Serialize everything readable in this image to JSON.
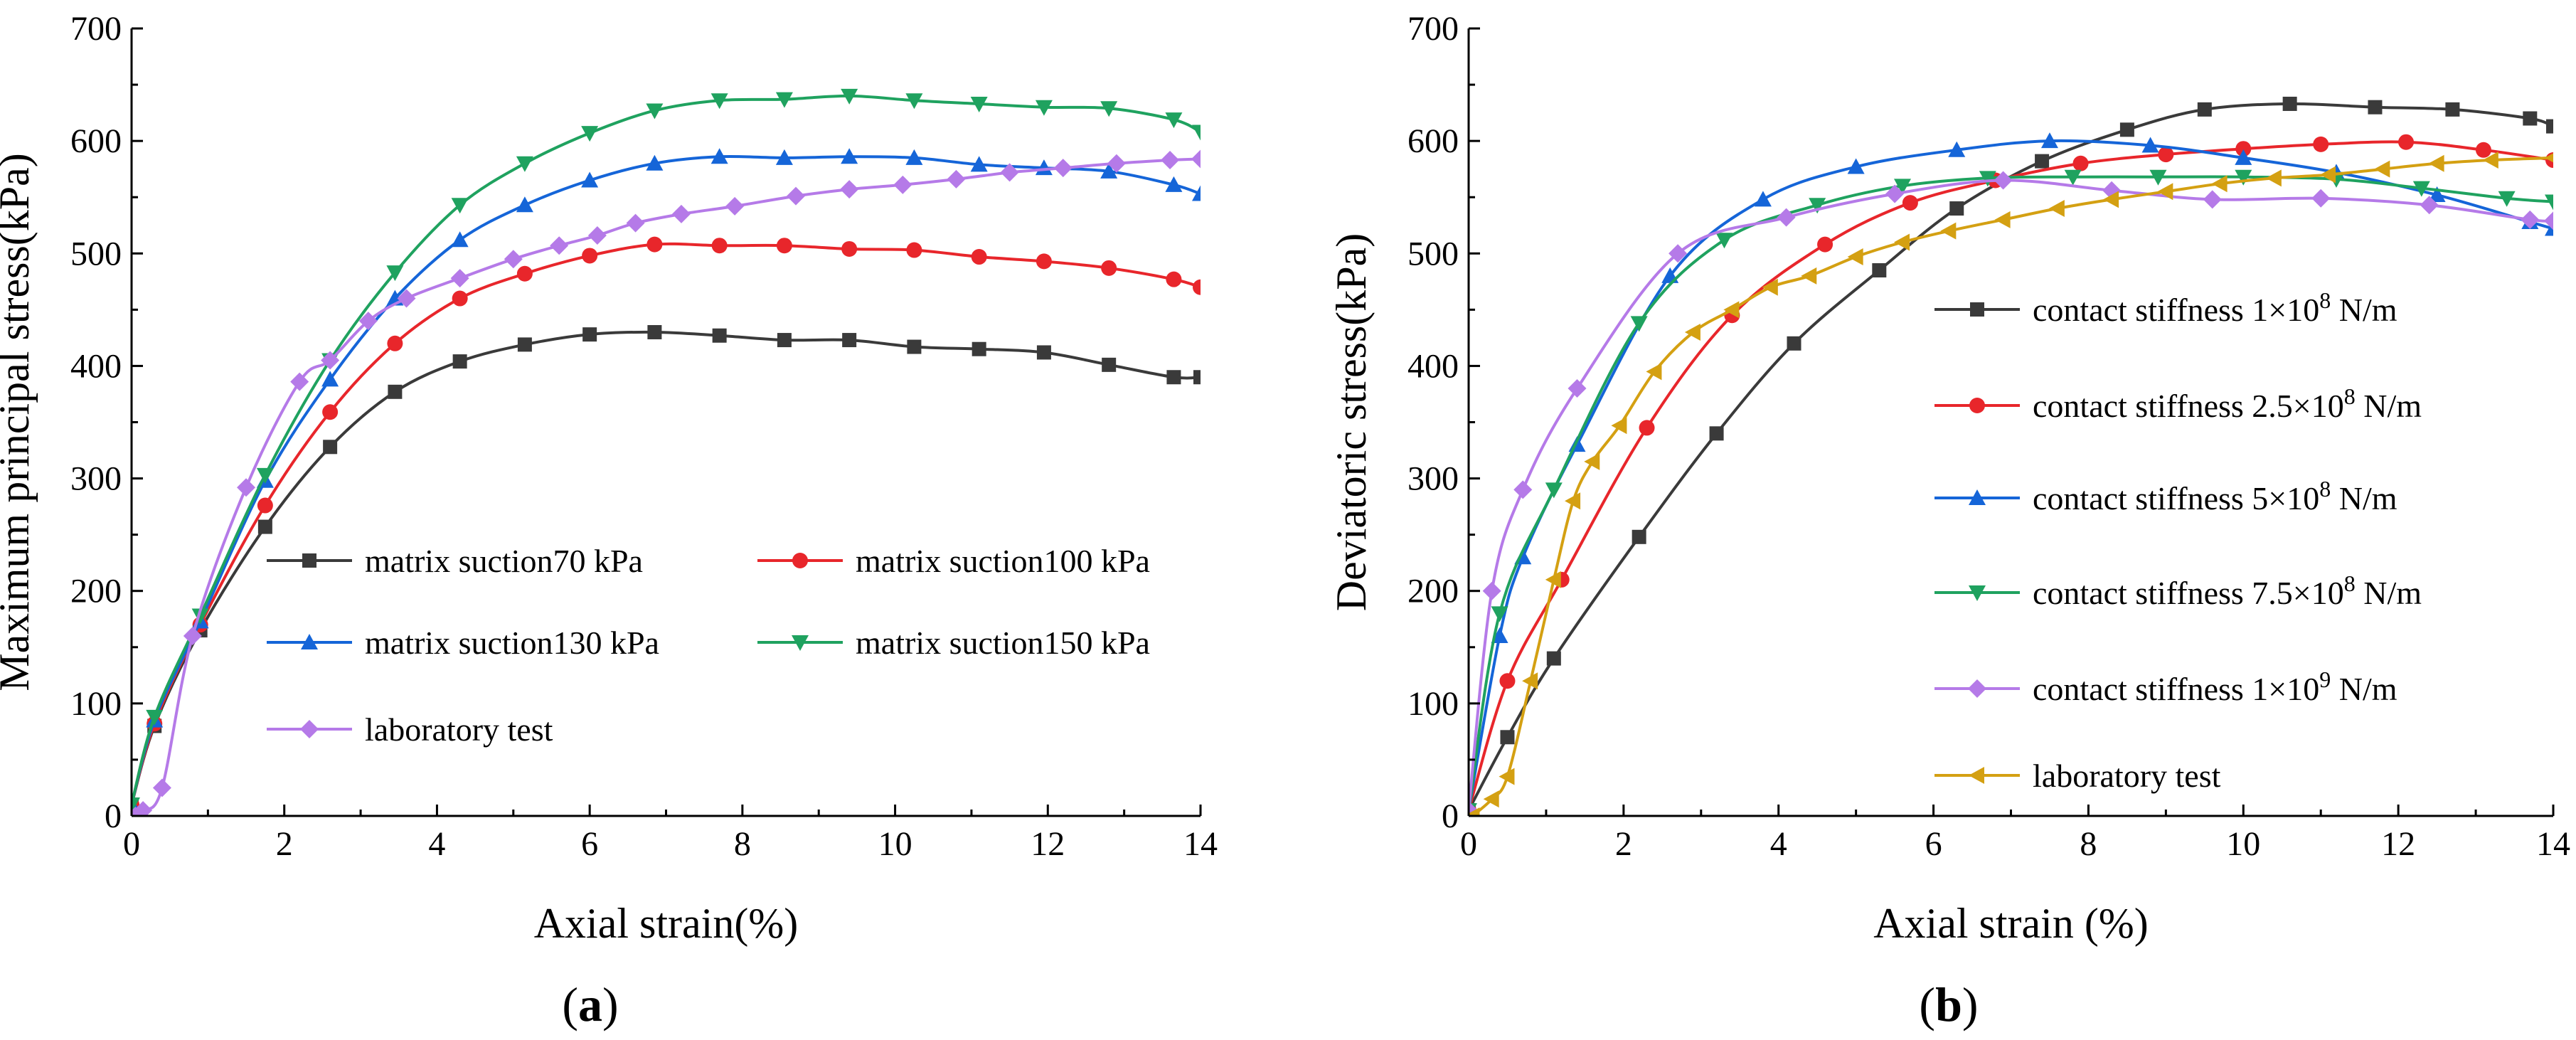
{
  "figure_labels": [
    {
      "open": "(",
      "letter": "a",
      "close": ")"
    },
    {
      "open": "(",
      "letter": "b",
      "close": ")"
    }
  ],
  "chart_data": [
    {
      "type": "line",
      "panel": "a",
      "title": "",
      "xlabel": "Axial strain(%)",
      "ylabel": "Maximum principal stress(kPa)",
      "xlim": [
        0,
        14
      ],
      "ylim": [
        0,
        700
      ],
      "xticks": [
        "0",
        "2",
        "4",
        "6",
        "8",
        "10",
        "12",
        "14"
      ],
      "yticks": [
        "0",
        "100",
        "200",
        "300",
        "400",
        "500",
        "600",
        "700"
      ],
      "legend_position": "center",
      "series": [
        {
          "name": "matrix suction70 kPa",
          "color": "#3a3a3a",
          "marker": "square",
          "x": [
            0,
            0.3,
            0.9,
            1.75,
            2.6,
            3.45,
            4.3,
            5.15,
            6.0,
            6.85,
            7.7,
            8.55,
            9.4,
            10.25,
            11.1,
            11.95,
            12.8,
            13.65,
            14.0
          ],
          "y": [
            10,
            80,
            165,
            257,
            328,
            377,
            404,
            419,
            428,
            430,
            427,
            423,
            423,
            417,
            415,
            412,
            401,
            390,
            390
          ]
        },
        {
          "name": "matrix suction100 kPa",
          "color": "#e8262b",
          "marker": "circle",
          "x": [
            0,
            0.3,
            0.9,
            1.75,
            2.6,
            3.45,
            4.3,
            5.15,
            6.0,
            6.85,
            7.7,
            8.55,
            9.4,
            10.25,
            11.1,
            11.95,
            12.8,
            13.65,
            14.0
          ],
          "y": [
            10,
            82,
            170,
            276,
            359,
            420,
            460,
            482,
            498,
            508,
            507,
            507,
            504,
            503,
            497,
            493,
            487,
            477,
            470
          ]
        },
        {
          "name": "matrix suction130 kPa",
          "color": "#1565d8",
          "marker": "triangle-up",
          "x": [
            0,
            0.3,
            0.9,
            1.75,
            2.6,
            3.45,
            4.3,
            5.15,
            6.0,
            6.85,
            7.7,
            8.55,
            9.4,
            10.25,
            11.1,
            11.95,
            12.8,
            13.65,
            14.0
          ],
          "y": [
            10,
            85,
            173,
            298,
            388,
            460,
            512,
            543,
            565,
            580,
            586,
            585,
            586,
            585,
            579,
            576,
            573,
            561,
            553
          ]
        },
        {
          "name": "matrix suction150 kPa",
          "color": "#1fa25f",
          "marker": "triangle-down",
          "x": [
            0,
            0.3,
            0.9,
            1.75,
            2.6,
            3.45,
            4.3,
            5.15,
            6.0,
            6.85,
            7.7,
            8.55,
            9.4,
            10.25,
            11.1,
            11.95,
            12.8,
            13.65,
            14.0
          ],
          "y": [
            10,
            88,
            178,
            303,
            405,
            483,
            543,
            580,
            607,
            627,
            636,
            637,
            640,
            636,
            633,
            630,
            629,
            619,
            608
          ]
        },
        {
          "name": "laboratory test",
          "color": "#b57ae8",
          "marker": "diamond",
          "x": [
            0.05,
            0.15,
            0.4,
            0.8,
            1.5,
            2.2,
            2.6,
            3.1,
            3.6,
            4.3,
            5.0,
            5.6,
            6.1,
            6.6,
            7.2,
            7.9,
            8.7,
            9.4,
            10.1,
            10.8,
            11.5,
            12.2,
            12.9,
            13.6,
            14.0
          ],
          "y": [
            0,
            5,
            25,
            160,
            292,
            386,
            405,
            440,
            460,
            478,
            495,
            507,
            516,
            527,
            535,
            542,
            551,
            557,
            561,
            566,
            572,
            576,
            580,
            583,
            584
          ]
        }
      ]
    },
    {
      "type": "line",
      "panel": "b",
      "title": "",
      "xlabel": "Axial strain (%)",
      "ylabel": "Deviatoric stress(kPa)",
      "xlim": [
        0,
        14
      ],
      "ylim": [
        0,
        700
      ],
      "xticks": [
        "0",
        "2",
        "4",
        "6",
        "8",
        "10",
        "12",
        "14"
      ],
      "yticks": [
        "0",
        "100",
        "200",
        "300",
        "400",
        "500",
        "600",
        "700"
      ],
      "legend_position": "right",
      "series": [
        {
          "name": "contact stiffness 1×10",
          "name_sup": "8",
          "name_suffix": " N/m",
          "color": "#3a3a3a",
          "marker": "square",
          "x": [
            0,
            0.5,
            1.1,
            2.2,
            3.2,
            4.2,
            5.3,
            6.3,
            7.4,
            8.5,
            9.5,
            10.6,
            11.7,
            12.7,
            13.7,
            14.0
          ],
          "y": [
            5,
            70,
            140,
            248,
            340,
            420,
            485,
            540,
            582,
            610,
            628,
            633,
            630,
            628,
            620,
            613
          ]
        },
        {
          "name": "contact stiffness 2.5×10",
          "name_sup": "8",
          "name_suffix": " N/m",
          "color": "#e8262b",
          "marker": "circle",
          "x": [
            0,
            0.5,
            1.2,
            2.3,
            3.4,
            4.6,
            5.7,
            6.8,
            7.9,
            9.0,
            10.0,
            11.0,
            12.1,
            13.1,
            14.0
          ],
          "y": [
            5,
            120,
            210,
            345,
            445,
            508,
            545,
            565,
            580,
            588,
            593,
            597,
            599,
            592,
            583
          ]
        },
        {
          "name": "contact stiffness 5×10",
          "name_sup": "8",
          "name_suffix": " N/m",
          "color": "#1565d8",
          "marker": "triangle-up",
          "x": [
            0,
            0.4,
            0.7,
            1.4,
            2.6,
            3.8,
            5.0,
            6.3,
            7.5,
            8.8,
            10.0,
            11.2,
            12.5,
            13.7,
            14.0
          ],
          "y": [
            5,
            160,
            230,
            330,
            480,
            548,
            577,
            592,
            600,
            596,
            585,
            572,
            552,
            528,
            522
          ]
        },
        {
          "name": "contact stiffness 7.5×10",
          "name_sup": "8",
          "name_suffix": " N/m",
          "color": "#1fa25f",
          "marker": "triangle-down",
          "x": [
            0,
            0.4,
            1.1,
            2.2,
            3.3,
            4.5,
            5.6,
            6.7,
            7.8,
            8.9,
            10.0,
            11.2,
            12.3,
            13.4,
            14.0
          ],
          "y": [
            5,
            180,
            290,
            438,
            512,
            543,
            560,
            567,
            568,
            568,
            568,
            566,
            558,
            549,
            546
          ]
        },
        {
          "name": "contact stiffness 1×10",
          "name_sup": "9",
          "name_suffix": " N/m",
          "color": "#b57ae8",
          "marker": "diamond",
          "x": [
            0,
            0.3,
            0.7,
            1.4,
            2.7,
            4.1,
            5.5,
            6.9,
            8.3,
            9.6,
            11.0,
            12.4,
            13.7,
            14.0
          ],
          "y": [
            5,
            200,
            290,
            380,
            500,
            532,
            553,
            565,
            556,
            548,
            549,
            543,
            530,
            529
          ]
        },
        {
          "name": "laboratory test",
          "name_sup": "",
          "name_suffix": "",
          "color": "#d4a012",
          "marker": "triangle-left",
          "x": [
            0.05,
            0.3,
            0.5,
            0.8,
            1.1,
            1.35,
            1.6,
            1.95,
            2.4,
            2.9,
            3.4,
            3.9,
            4.4,
            5.0,
            5.6,
            6.2,
            6.9,
            7.6,
            8.3,
            9.0,
            9.7,
            10.4,
            11.1,
            11.8,
            12.5,
            13.2,
            14.0
          ],
          "y": [
            0,
            15,
            35,
            120,
            210,
            280,
            315,
            347,
            395,
            430,
            450,
            470,
            480,
            497,
            510,
            520,
            530,
            540,
            548,
            555,
            562,
            567,
            570,
            575,
            580,
            583,
            585
          ]
        }
      ]
    }
  ]
}
